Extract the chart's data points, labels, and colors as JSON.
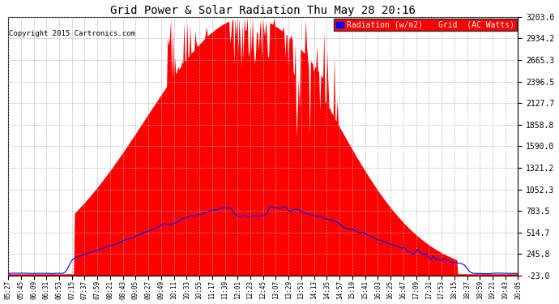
{
  "title": "Grid Power & Solar Radiation Thu May 28 20:16",
  "copyright": "Copyright 2015 Cartronics.com",
  "yticks": [
    -23.0,
    245.8,
    514.7,
    783.5,
    1052.3,
    1321.2,
    1590.0,
    1858.8,
    2127.7,
    2396.5,
    2665.3,
    2934.2,
    3203.0
  ],
  "ylim": [
    -23.0,
    3203.0
  ],
  "background_color": "#ffffff",
  "plot_bg_color": "#ffffff",
  "grid_color": "#aaaaaa",
  "red_fill_color": "#ff0000",
  "blue_line_color": "#0000ff",
  "legend_bg_color": "#ff0000",
  "xtick_labels": [
    "05:27",
    "05:45",
    "06:09",
    "06:31",
    "06:53",
    "07:15",
    "07:37",
    "07:59",
    "08:21",
    "08:43",
    "09:05",
    "09:27",
    "09:49",
    "10:11",
    "10:33",
    "10:55",
    "11:17",
    "11:39",
    "12:01",
    "12:23",
    "12:45",
    "13:07",
    "13:29",
    "13:51",
    "14:13",
    "14:35",
    "14:57",
    "15:19",
    "15:41",
    "16:03",
    "16:25",
    "16:47",
    "17:09",
    "17:31",
    "17:53",
    "18:15",
    "18:37",
    "18:59",
    "19:21",
    "19:43",
    "20:05"
  ],
  "num_points": 500,
  "seed": 12345
}
